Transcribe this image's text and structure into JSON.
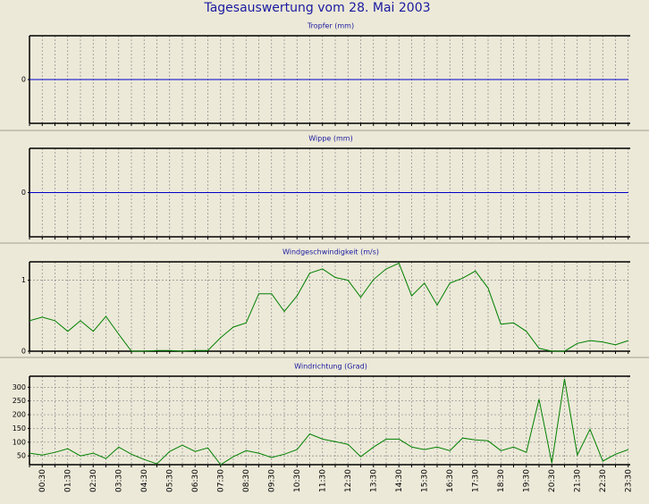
{
  "title": "Tagesauswertung vom 28. Mai 2003",
  "chart_data": [
    {
      "type": "line",
      "title": "Tropfer (mm)",
      "color": "#0000cc",
      "grid": true,
      "ylim": [
        -1,
        1
      ],
      "yticks": [
        0
      ],
      "values": [
        0,
        0,
        0,
        0,
        0,
        0,
        0,
        0,
        0,
        0,
        0,
        0,
        0,
        0,
        0,
        0,
        0,
        0,
        0,
        0,
        0,
        0,
        0,
        0,
        0,
        0,
        0,
        0,
        0,
        0,
        0,
        0,
        0,
        0,
        0,
        0,
        0,
        0,
        0,
        0,
        0,
        0,
        0,
        0,
        0,
        0,
        0,
        0
      ]
    },
    {
      "type": "line",
      "title": "Wippe (mm)",
      "color": "#0000cc",
      "grid": true,
      "ylim": [
        -1,
        1
      ],
      "yticks": [
        0
      ],
      "values": [
        0,
        0,
        0,
        0,
        0,
        0,
        0,
        0,
        0,
        0,
        0,
        0,
        0,
        0,
        0,
        0,
        0,
        0,
        0,
        0,
        0,
        0,
        0,
        0,
        0,
        0,
        0,
        0,
        0,
        0,
        0,
        0,
        0,
        0,
        0,
        0,
        0,
        0,
        0,
        0,
        0,
        0,
        0,
        0,
        0,
        0,
        0,
        0
      ]
    },
    {
      "type": "line",
      "title": "Windgeschwindigkeit (m/s)",
      "color": "#008000",
      "grid": true,
      "ylim": [
        0,
        1.26
      ],
      "yticks": [
        0,
        1
      ],
      "values": [
        0.43,
        0.48,
        0.43,
        0.28,
        0.43,
        0.28,
        0.49,
        0.24,
        0,
        0,
        0.01,
        0.01,
        0,
        0.01,
        0.01,
        0.19,
        0.34,
        0.4,
        0.81,
        0.81,
        0.56,
        0.78,
        1.1,
        1.16,
        1.04,
        1.0,
        0.76,
        1.01,
        1.16,
        1.24,
        0.78,
        0.96,
        0.65,
        0.96,
        1.03,
        1.13,
        0.89,
        0.38,
        0.4,
        0.28,
        0.04,
        0,
        0,
        0.11,
        0.15,
        0.13,
        0.09,
        0.15
      ]
    },
    {
      "type": "line",
      "title": "Windrichtung (Grad)",
      "color": "#008000",
      "grid": true,
      "ylim": [
        18,
        340
      ],
      "yticks": [
        50,
        100,
        150,
        200,
        250,
        300
      ],
      "categories": [
        null,
        "00:30",
        null,
        "01:30",
        null,
        "02:30",
        null,
        "03:30",
        null,
        "04:30",
        null,
        "05:30",
        null,
        "06:30",
        null,
        "07:30",
        null,
        "08:30",
        null,
        "09:30",
        null,
        "10:30",
        null,
        "11:30",
        null,
        "12:30",
        null,
        "13:30",
        null,
        "14:30",
        null,
        "15:30",
        null,
        "16:30",
        null,
        "17:30",
        null,
        "18:30",
        null,
        "19:30",
        null,
        "20:30",
        null,
        "21:30",
        null,
        "22:30",
        null,
        "23:30"
      ],
      "values": [
        60,
        53,
        63,
        76,
        50,
        60,
        40,
        82,
        56,
        37,
        21,
        66,
        89,
        66,
        79,
        18,
        47,
        69,
        60,
        44,
        56,
        73,
        130,
        111,
        102,
        92,
        47,
        82,
        111,
        111,
        82,
        73,
        82,
        69,
        115,
        108,
        105,
        69,
        82,
        63,
        256,
        24,
        330,
        53,
        147,
        31,
        56,
        73
      ]
    }
  ]
}
